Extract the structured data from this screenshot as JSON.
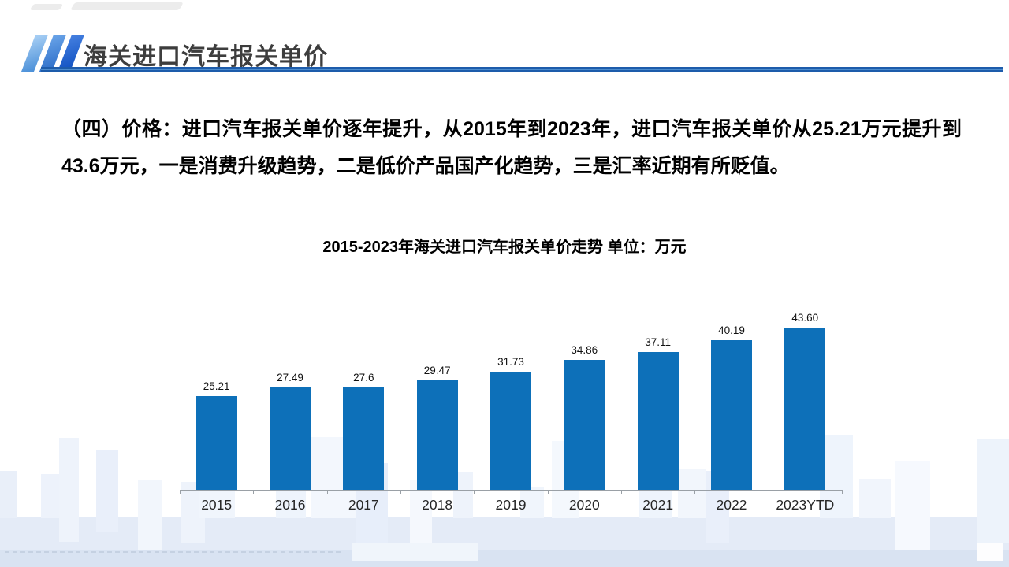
{
  "header": {
    "title": "海关进口汽车报关单价"
  },
  "body": {
    "paragraph": "（四）价格：进口汽车报关单价逐年提升，从2015年到2023年，进口汽车报关单价从25.21万元提升到43.6万元，一是消费升级趋势，二是低价产品国产化趋势，三是汇率近期有所贬值。"
  },
  "chart_data": {
    "type": "bar",
    "title": "2015-2023年海关进口汽车报关单价走势 单位：万元",
    "unit": "万元",
    "categories": [
      "2015",
      "2016",
      "2017",
      "2018",
      "2019",
      "2020",
      "2021",
      "2022",
      "2023YTD"
    ],
    "values": [
      25.21,
      27.49,
      27.6,
      29.47,
      31.73,
      34.86,
      37.11,
      40.19,
      43.6
    ],
    "value_labels": [
      "25.21",
      "27.49",
      "27.6",
      "29.47",
      "31.73",
      "34.86",
      "37.11",
      "40.19",
      "43.60"
    ],
    "bar_color": "#0d70b9",
    "ylim": [
      0,
      43.6
    ],
    "grid": false,
    "legend": "none",
    "data_labels_position": "above bars"
  },
  "colors": {
    "accent_blue": "#0d70b9",
    "underline_dark": "#1d5cab",
    "underline_mid": "#4c8ccd",
    "title_text": "#3d3d3d",
    "axis_gray": "#9aa0a6",
    "skyline_band_bottom": "#d9e3f2",
    "skyline_band_mid": "#e4ebf7"
  }
}
